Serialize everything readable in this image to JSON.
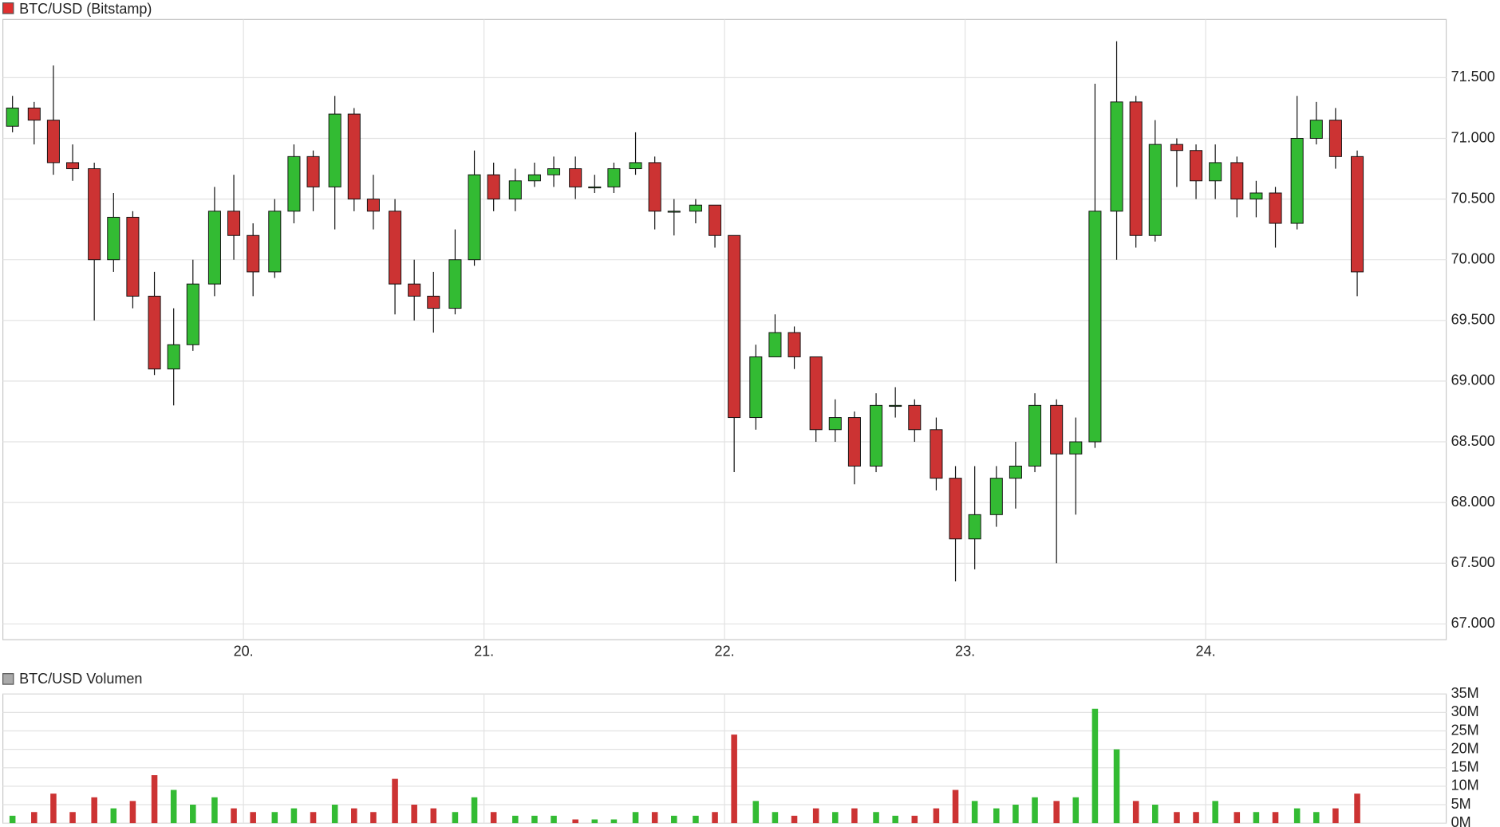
{
  "chart_data": [
    {
      "type": "candlestick",
      "title": "BTC/USD (Bitstamp)",
      "title_color": "#e03030",
      "up_color": "#33bb33",
      "down_color": "#cc3333",
      "grid": true,
      "xlim": [
        19,
        25
      ],
      "xticks": [
        {
          "value": 20,
          "label": "20."
        },
        {
          "value": 21,
          "label": "21."
        },
        {
          "value": 22,
          "label": "22."
        },
        {
          "value": 23,
          "label": "23."
        },
        {
          "value": 24,
          "label": "24."
        }
      ],
      "ylim": [
        66870,
        71980
      ],
      "yticks": [
        {
          "value": 67000,
          "label": "67.000"
        },
        {
          "value": 67500,
          "label": "67.500"
        },
        {
          "value": 68000,
          "label": "68.000"
        },
        {
          "value": 68500,
          "label": "68.500"
        },
        {
          "value": 69000,
          "label": "69.000"
        },
        {
          "value": 69500,
          "label": "69.500"
        },
        {
          "value": 70000,
          "label": "70.000"
        },
        {
          "value": 70500,
          "label": "70.500"
        },
        {
          "value": 71000,
          "label": "71.000"
        },
        {
          "value": 71500,
          "label": "71.500"
        }
      ],
      "x": [
        19.04,
        19.13,
        19.21,
        19.29,
        19.38,
        19.46,
        19.54,
        19.63,
        19.71,
        19.79,
        19.88,
        19.96,
        20.04,
        20.13,
        20.21,
        20.29,
        20.38,
        20.46,
        20.54,
        20.63,
        20.71,
        20.79,
        20.88,
        20.96,
        21.04,
        21.13,
        21.21,
        21.29,
        21.38,
        21.46,
        21.54,
        21.63,
        21.71,
        21.79,
        21.88,
        21.96,
        22.04,
        22.13,
        22.21,
        22.29,
        22.38,
        22.46,
        22.54,
        22.63,
        22.71,
        22.79,
        22.88,
        22.96,
        23.04,
        23.13,
        23.21,
        23.29,
        23.38,
        23.46,
        23.54,
        23.63,
        23.71,
        23.79,
        23.88,
        23.96,
        24.04,
        24.13,
        24.21,
        24.29,
        24.38,
        24.46,
        24.54,
        24.63
      ],
      "open": [
        71100,
        71250,
        71150,
        70800,
        70750,
        70000,
        70350,
        69700,
        69100,
        69300,
        69800,
        70400,
        70200,
        69900,
        70400,
        70850,
        70600,
        71200,
        70500,
        70400,
        69800,
        69700,
        69600,
        70000,
        70700,
        70500,
        70650,
        70700,
        70750,
        70600,
        70600,
        70750,
        70800,
        70400,
        70400,
        70450,
        70200,
        68700,
        69200,
        69400,
        69200,
        68600,
        68700,
        68300,
        68800,
        68800,
        68600,
        68200,
        67700,
        67900,
        68200,
        68300,
        68800,
        68400,
        68500,
        70400,
        71300,
        70200,
        70950,
        70900,
        70650,
        70800,
        70500,
        70550,
        70300,
        71000,
        71150,
        70850
      ],
      "high": [
        71350,
        71300,
        71600,
        70950,
        70800,
        70550,
        70400,
        69900,
        69600,
        70000,
        70600,
        70700,
        70300,
        70500,
        70950,
        70900,
        71350,
        71250,
        70700,
        70500,
        70000,
        69900,
        70250,
        70900,
        70800,
        70750,
        70800,
        70850,
        70850,
        70700,
        70800,
        71050,
        70850,
        70500,
        70500,
        70450,
        70150,
        69300,
        69550,
        69450,
        69200,
        68850,
        68750,
        68900,
        68950,
        68850,
        68700,
        68300,
        68300,
        68300,
        68500,
        68900,
        68850,
        68700,
        71450,
        71800,
        71350,
        71150,
        71000,
        70950,
        70950,
        70850,
        70650,
        70600,
        71350,
        71300,
        71250,
        70900
      ],
      "low": [
        71050,
        70950,
        70700,
        70650,
        69500,
        69900,
        69600,
        69050,
        68800,
        69250,
        69700,
        70000,
        69700,
        69850,
        70300,
        70400,
        70250,
        70400,
        70250,
        69550,
        69500,
        69400,
        69550,
        69950,
        70400,
        70400,
        70600,
        70600,
        70500,
        70550,
        70550,
        70700,
        70250,
        70200,
        70300,
        70100,
        68250,
        68600,
        69200,
        69100,
        68500,
        68500,
        68150,
        68250,
        68700,
        68500,
        68100,
        67350,
        67450,
        67800,
        67950,
        68250,
        67500,
        67900,
        68450,
        70000,
        70100,
        70150,
        70600,
        70500,
        70500,
        70350,
        70350,
        70100,
        70250,
        70950,
        70750,
        69700
      ],
      "close": [
        71250,
        71150,
        70800,
        70750,
        70000,
        70350,
        69700,
        69100,
        69300,
        69800,
        70400,
        70200,
        69900,
        70400,
        70850,
        70600,
        71200,
        70500,
        70400,
        69800,
        69700,
        69600,
        70000,
        70700,
        70500,
        70650,
        70700,
        70750,
        70600,
        70600,
        70750,
        70800,
        70400,
        70400,
        70450,
        70200,
        68700,
        69200,
        69400,
        69200,
        68600,
        68700,
        68300,
        68800,
        68800,
        68600,
        68200,
        67700,
        67900,
        68200,
        68300,
        68800,
        68400,
        68500,
        70400,
        71300,
        70200,
        70950,
        70900,
        70650,
        70800,
        70500,
        70550,
        70300,
        71000,
        71150,
        70850,
        69900
      ]
    },
    {
      "type": "volume",
      "title": "BTC/USD Volumen",
      "title_color": "#aaaaaa",
      "grid": true,
      "ylim": [
        0,
        35000000
      ],
      "yticks": [
        {
          "value": 0,
          "label": "0M"
        },
        {
          "value": 5000000,
          "label": "5M"
        },
        {
          "value": 10000000,
          "label": "10M"
        },
        {
          "value": 15000000,
          "label": "15M"
        },
        {
          "value": 20000000,
          "label": "20M"
        },
        {
          "value": 25000000,
          "label": "25M"
        },
        {
          "value": 30000000,
          "label": "30M"
        },
        {
          "value": 35000000,
          "label": "35M"
        }
      ],
      "values": [
        2000000,
        3000000,
        8000000,
        3000000,
        7000000,
        4000000,
        6000000,
        13000000,
        9000000,
        5000000,
        7000000,
        4000000,
        3000000,
        3000000,
        4000000,
        3000000,
        5000000,
        4000000,
        3000000,
        12000000,
        5000000,
        4000000,
        3000000,
        7000000,
        3000000,
        2000000,
        2000000,
        2000000,
        1000000,
        1000000,
        1000000,
        3000000,
        3000000,
        2000000,
        2000000,
        3000000,
        24000000,
        6000000,
        3000000,
        2000000,
        4000000,
        3000000,
        4000000,
        3000000,
        2000000,
        2000000,
        4000000,
        9000000,
        6000000,
        4000000,
        5000000,
        7000000,
        6000000,
        7000000,
        31000000,
        20000000,
        6000000,
        5000000,
        3000000,
        3000000,
        6000000,
        3000000,
        3000000,
        3000000,
        4000000,
        3000000,
        4000000,
        8000000
      ]
    }
  ]
}
